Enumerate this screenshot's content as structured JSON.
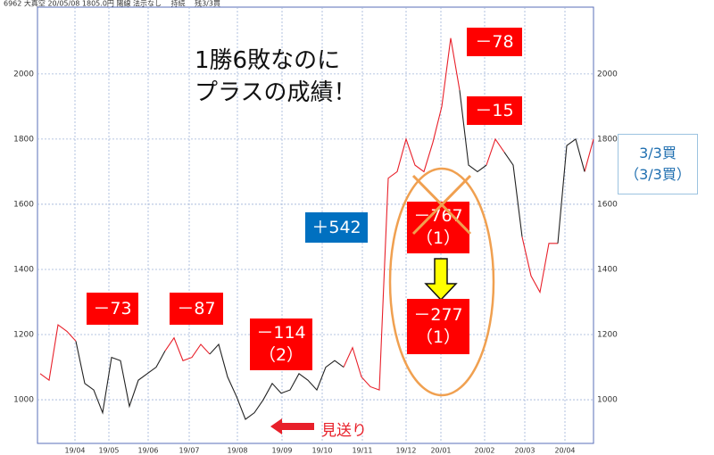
{
  "chart_data": {
    "type": "line",
    "title": "6962 大真空 20/05/08 1805.0円 陽線 法示なし 　持続 　残3/3買",
    "series": [
      {
        "color": "#e8202a",
        "values": [
          1080,
          1060,
          1230,
          1210,
          1180,
          null,
          null,
          null,
          null,
          null,
          null,
          null,
          null,
          null,
          1150,
          1190,
          1120,
          1130,
          1170,
          1140,
          null,
          null,
          null,
          null,
          null,
          null,
          null,
          null,
          null,
          null,
          null,
          null,
          null,
          null,
          1100,
          1160,
          1070,
          1040,
          1030,
          1680,
          1700,
          1800,
          1720,
          1700,
          1790,
          1900,
          2110,
          1950,
          null,
          null,
          1720,
          1800,
          1760,
          null,
          1500,
          1380,
          1330,
          1480,
          1480,
          null,
          null,
          1700,
          1800
        ]
      },
      {
        "color": "#222222",
        "values": [
          null,
          null,
          null,
          null,
          1180,
          1050,
          1030,
          960,
          1130,
          1120,
          980,
          1060,
          1080,
          1100,
          1150,
          null,
          null,
          null,
          null,
          1140,
          1170,
          1070,
          1010,
          940,
          960,
          1000,
          1050,
          1020,
          1030,
          1080,
          1060,
          1030,
          1100,
          1120,
          1100,
          null,
          null,
          null,
          null,
          null,
          null,
          null,
          null,
          null,
          null,
          null,
          null,
          1950,
          1720,
          1700,
          1720,
          null,
          1760,
          1720,
          1500,
          null,
          null,
          null,
          1480,
          1780,
          1800,
          1700,
          null
        ]
      }
    ],
    "xlim": [
      -0.3,
      62
    ],
    "xticks": [
      {
        "value": 3.9,
        "label": "19/04"
      },
      {
        "value": 7.7,
        "label": "19/05"
      },
      {
        "value": 12.1,
        "label": "19/06"
      },
      {
        "value": 16.7,
        "label": "19/07"
      },
      {
        "value": 22.1,
        "label": "19/08"
      },
      {
        "value": 27.1,
        "label": "19/09"
      },
      {
        "value": 31.6,
        "label": "19/10"
      },
      {
        "value": 36.1,
        "label": "19/11"
      },
      {
        "value": 41,
        "label": "19/12"
      },
      {
        "value": 44.9,
        "label": "20/01"
      },
      {
        "value": 49.8,
        "label": "20/02"
      },
      {
        "value": 54.3,
        "label": "20/03"
      },
      {
        "value": 58.8,
        "label": "20/04"
      }
    ],
    "ylim": [
      866,
      2205
    ],
    "yticks": [
      1000,
      1200,
      1400,
      1600,
      1800,
      2000
    ],
    "grid": true,
    "headline": [
      "1勝6敗なのに",
      "プラスの成績！"
    ],
    "annotations": [
      {
        "lines": [
          "－73"
        ],
        "color": "#ff0000"
      },
      {
        "lines": [
          "－87"
        ],
        "color": "#ff0000"
      },
      {
        "lines": [
          "－114",
          "（2）"
        ],
        "color": "#ff0000"
      },
      {
        "lines": [
          "＋542"
        ],
        "color": "#0070c0"
      },
      {
        "lines": [
          "－767",
          "（1）"
        ],
        "color": "#ff0000"
      },
      {
        "lines": [
          "－277",
          "（1）"
        ],
        "color": "#ff0000"
      },
      {
        "lines": [
          "－78"
        ],
        "color": "#ff0000"
      },
      {
        "lines": [
          "－15"
        ],
        "color": "#ff0000"
      }
    ],
    "side_note": [
      "3/3買",
      "（3/3買）"
    ],
    "skip_label": "見送り"
  }
}
